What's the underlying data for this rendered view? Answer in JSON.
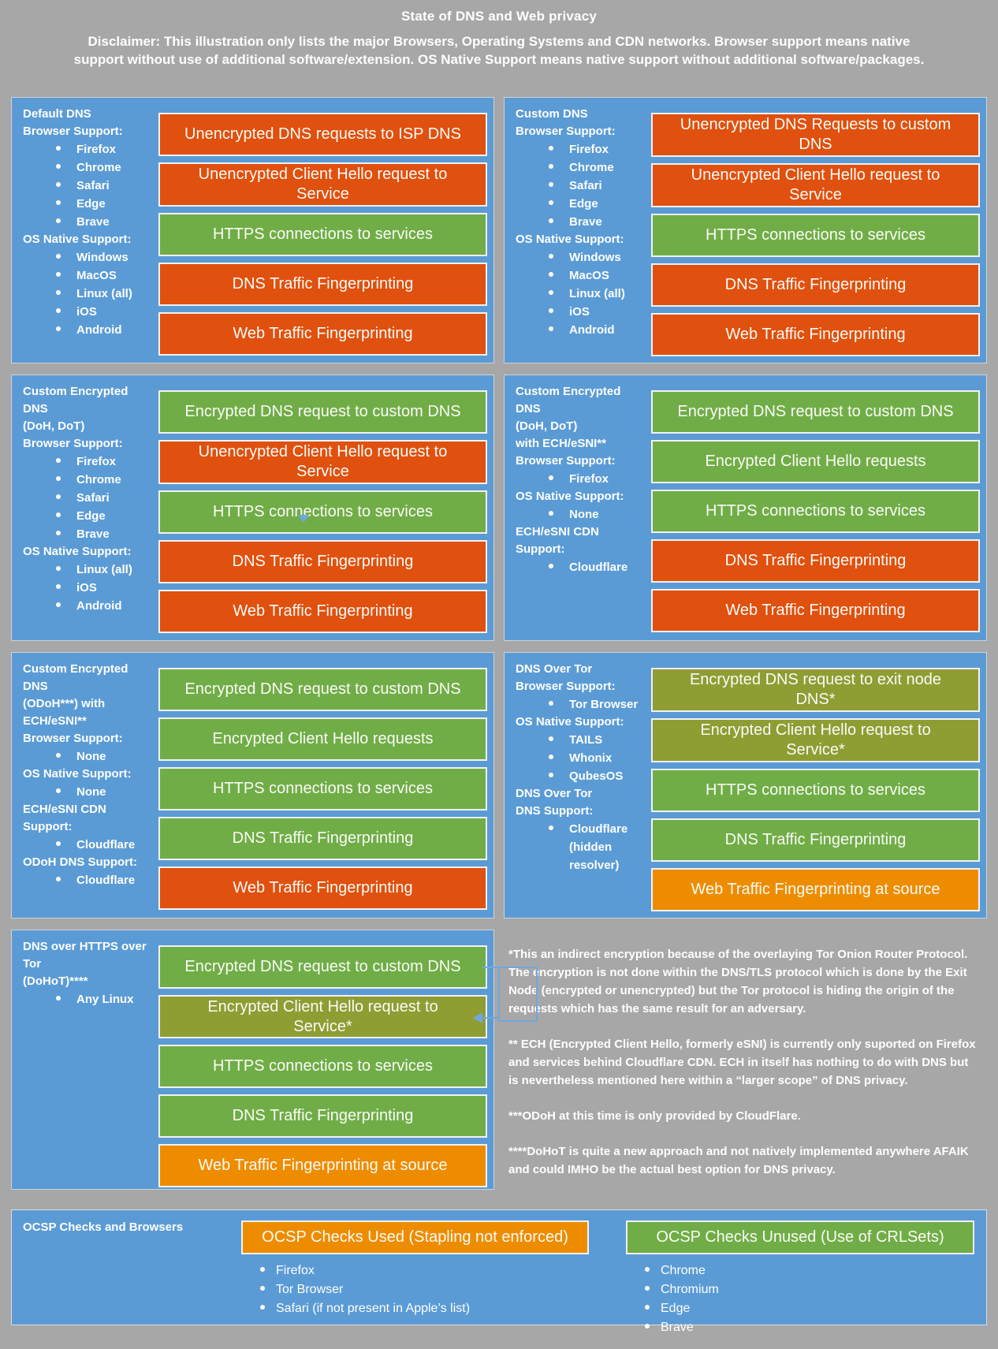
{
  "header": {
    "title": "State of DNS and Web privacy",
    "disclaimer": "Disclaimer: This illustration only lists the major Browsers, Operating Systems and CDN networks. Browser support means native support without use of additional software/extension. OS Native Support means native support without additional software/packages."
  },
  "colors": {
    "background": "#A7A7A7",
    "panel_blue": "#5B9BD5",
    "bad_red_orange": "#E0500F",
    "good_green": "#70AD47",
    "indirect_olive": "#8F9D33",
    "warn_amber": "#EE8C00"
  },
  "panels": [
    {
      "id": "default-dns",
      "sidebar": [
        {
          "t": "label",
          "text": "Default DNS"
        },
        {
          "t": "label",
          "text": "Browser Support:"
        },
        {
          "t": "bullet",
          "text": "Firefox"
        },
        {
          "t": "bullet",
          "text": "Chrome"
        },
        {
          "t": "bullet",
          "text": "Safari"
        },
        {
          "t": "bullet",
          "text": "Edge"
        },
        {
          "t": "bullet",
          "text": "Brave"
        },
        {
          "t": "label",
          "text": "OS Native Support:"
        },
        {
          "t": "bullet",
          "text": "Windows"
        },
        {
          "t": "bullet",
          "text": "MacOS"
        },
        {
          "t": "bullet",
          "text": "Linux (all)"
        },
        {
          "t": "bullet",
          "text": "iOS"
        },
        {
          "t": "bullet",
          "text": "Android"
        }
      ],
      "bars": [
        {
          "text": "Unencrypted DNS requests to ISP DNS",
          "status": "bad"
        },
        {
          "text": "Unencrypted Client Hello request to Service",
          "status": "bad"
        },
        {
          "text": "HTTPS connections to services",
          "status": "good"
        },
        {
          "text": "DNS Traffic Fingerprinting",
          "status": "bad"
        },
        {
          "text": "Web Traffic Fingerprinting",
          "status": "bad"
        }
      ]
    },
    {
      "id": "custom-dns",
      "sidebar": [
        {
          "t": "label",
          "text": "Custom DNS"
        },
        {
          "t": "label",
          "text": "Browser Support:"
        },
        {
          "t": "bullet",
          "text": "Firefox"
        },
        {
          "t": "bullet",
          "text": "Chrome"
        },
        {
          "t": "bullet",
          "text": "Safari"
        },
        {
          "t": "bullet",
          "text": "Edge"
        },
        {
          "t": "bullet",
          "text": "Brave"
        },
        {
          "t": "label",
          "text": "OS Native Support:"
        },
        {
          "t": "bullet",
          "text": "Windows"
        },
        {
          "t": "bullet",
          "text": "MacOS"
        },
        {
          "t": "bullet",
          "text": "Linux (all)"
        },
        {
          "t": "bullet",
          "text": "iOS"
        },
        {
          "t": "bullet",
          "text": "Android"
        }
      ],
      "bars": [
        {
          "text": "Unencrypted DNS Requests to custom DNS",
          "status": "bad"
        },
        {
          "text": "Unencrypted Client Hello request to Service",
          "status": "bad"
        },
        {
          "text": "HTTPS connections to services",
          "status": "good"
        },
        {
          "text": "DNS Traffic Fingerprinting",
          "status": "bad"
        },
        {
          "text": "Web Traffic Fingerprinting",
          "status": "bad"
        }
      ]
    },
    {
      "id": "custom-encrypted-dns-doh-dot",
      "artifact": "triangle",
      "sidebar": [
        {
          "t": "label",
          "text": "Custom Encrypted DNS"
        },
        {
          "t": "label",
          "text": "(DoH, DoT)"
        },
        {
          "t": "label",
          "text": "Browser Support:"
        },
        {
          "t": "bullet",
          "text": "Firefox"
        },
        {
          "t": "bullet",
          "text": "Chrome"
        },
        {
          "t": "bullet",
          "text": "Safari"
        },
        {
          "t": "bullet",
          "text": "Edge"
        },
        {
          "t": "bullet",
          "text": "Brave"
        },
        {
          "t": "label",
          "text": "OS Native Support:"
        },
        {
          "t": "bullet",
          "text": "Linux (all)"
        },
        {
          "t": "bullet",
          "text": "iOS"
        },
        {
          "t": "bullet",
          "text": "Android"
        }
      ],
      "bars": [
        {
          "text": "Encrypted DNS request to custom DNS",
          "status": "good"
        },
        {
          "text": "Unencrypted Client Hello request to Service",
          "status": "bad"
        },
        {
          "text": "HTTPS connections to services",
          "status": "good"
        },
        {
          "text": "DNS Traffic Fingerprinting",
          "status": "bad"
        },
        {
          "text": "Web Traffic Fingerprinting",
          "status": "bad"
        }
      ]
    },
    {
      "id": "custom-encrypted-dns-ech",
      "sidebar": [
        {
          "t": "label",
          "text": "Custom Encrypted DNS"
        },
        {
          "t": "label",
          "text": "(DoH, DoT)"
        },
        {
          "t": "label",
          "text": "with ECH/eSNI**"
        },
        {
          "t": "label",
          "text": "Browser Support:"
        },
        {
          "t": "bullet",
          "text": "Firefox"
        },
        {
          "t": "label",
          "text": "OS Native Support:"
        },
        {
          "t": "bullet",
          "text": "None"
        },
        {
          "t": "label",
          "text": "ECH/eSNI CDN Support:"
        },
        {
          "t": "bullet",
          "text": "Cloudflare"
        }
      ],
      "bars": [
        {
          "text": "Encrypted DNS request to custom DNS",
          "status": "good"
        },
        {
          "text": "Encrypted Client Hello requests",
          "status": "good"
        },
        {
          "text": "HTTPS connections to services",
          "status": "good"
        },
        {
          "text": "DNS Traffic Fingerprinting",
          "status": "bad"
        },
        {
          "text": "Web Traffic Fingerprinting",
          "status": "bad"
        }
      ]
    },
    {
      "id": "custom-encrypted-dns-odoh",
      "sidebar": [
        {
          "t": "label",
          "text": "Custom Encrypted DNS"
        },
        {
          "t": "label",
          "text": "(ODoH***) with"
        },
        {
          "t": "label",
          "text": "ECH/eSNI**"
        },
        {
          "t": "label",
          "text": "Browser Support:"
        },
        {
          "t": "bullet",
          "text": "None"
        },
        {
          "t": "label",
          "text": "OS Native Support:"
        },
        {
          "t": "bullet",
          "text": "None"
        },
        {
          "t": "label",
          "text": "ECH/eSNI CDN Support:"
        },
        {
          "t": "bullet",
          "text": "Cloudflare"
        },
        {
          "t": "label",
          "text": "ODoH DNS Support:"
        },
        {
          "t": "bullet",
          "text": "Cloudflare"
        }
      ],
      "bars": [
        {
          "text": "Encrypted DNS request to custom DNS",
          "status": "good"
        },
        {
          "text": "Encrypted Client Hello requests",
          "status": "good"
        },
        {
          "text": "HTTPS connections to services",
          "status": "good"
        },
        {
          "text": "DNS Traffic Fingerprinting",
          "status": "good"
        },
        {
          "text": "Web Traffic Fingerprinting",
          "status": "bad"
        }
      ]
    },
    {
      "id": "dns-over-tor",
      "sidebar": [
        {
          "t": "label",
          "text": "DNS Over Tor"
        },
        {
          "t": "label",
          "text": "Browser Support:"
        },
        {
          "t": "bullet",
          "text": "Tor Browser"
        },
        {
          "t": "label",
          "text": "OS Native Support:"
        },
        {
          "t": "bullet",
          "text": "TAILS"
        },
        {
          "t": "bullet",
          "text": "Whonix"
        },
        {
          "t": "bullet",
          "text": "QubesOS"
        },
        {
          "t": "label",
          "text": "DNS Over Tor"
        },
        {
          "t": "label",
          "text": "DNS Support:"
        },
        {
          "t": "bullet",
          "text": "Cloudflare"
        },
        {
          "t": "sub",
          "text": "(hidden resolver)"
        }
      ],
      "bars": [
        {
          "text": "Encrypted DNS request to exit node DNS*",
          "status": "indirect"
        },
        {
          "text": "Encrypted Client Hello request to Service*",
          "status": "indirect"
        },
        {
          "text": "HTTPS connections to services",
          "status": "good"
        },
        {
          "text": "DNS Traffic Fingerprinting",
          "status": "good"
        },
        {
          "text": "Web Traffic Fingerprinting at source",
          "status": "warn"
        }
      ]
    },
    {
      "id": "dohot",
      "callout": true,
      "sidebar": [
        {
          "t": "label",
          "text": "DNS over HTTPS over Tor"
        },
        {
          "t": "label",
          "text": "(DoHoT)****"
        },
        {
          "t": "bullet",
          "text": "Any Linux"
        }
      ],
      "bars": [
        {
          "text": "Encrypted DNS request to custom DNS",
          "status": "good"
        },
        {
          "text": "Encrypted Client Hello request to Service*",
          "status": "indirect"
        },
        {
          "text": "HTTPS connections to services",
          "status": "good"
        },
        {
          "text": "DNS Traffic Fingerprinting",
          "status": "good"
        },
        {
          "text": "Web Traffic Fingerprinting at source",
          "status": "warn"
        }
      ]
    }
  ],
  "notes": [
    "*This an indirect encryption because of the overlaying Tor Onion Router Protocol. The encryption is not done within the DNS/TLS protocol which is done by the Exit Node (encrypted or unencrypted) but the Tor protocol is hiding the origin of the requests which has the same result for an adversary.",
    "** ECH (Encrypted Client Hello, formerly eSNI) is currently only suported on Firefox and services behind Cloudflare CDN. ECH in itself has nothing to do with DNS but is nevertheless mentioned here within a “larger scope” of DNS privacy.",
    "***ODoH at this time is only provided by CloudFlare.",
    "****DoHoT is quite a new approach and not natively implemented anywhere AFAIK and could IMHO be the actual best option for DNS privacy."
  ],
  "ocsp": {
    "title": "OCSP Checks and Browsers",
    "used": {
      "label": "OCSP Checks Used (Stapling not enforced)",
      "items": [
        "Firefox",
        "Tor Browser",
        "Safari (if not present in Apple’s list)"
      ]
    },
    "unused": {
      "label": "OCSP Checks Unused (Use of CRLSets)",
      "items": [
        "Chrome",
        "Chromium",
        "Edge",
        "Brave"
      ]
    }
  }
}
